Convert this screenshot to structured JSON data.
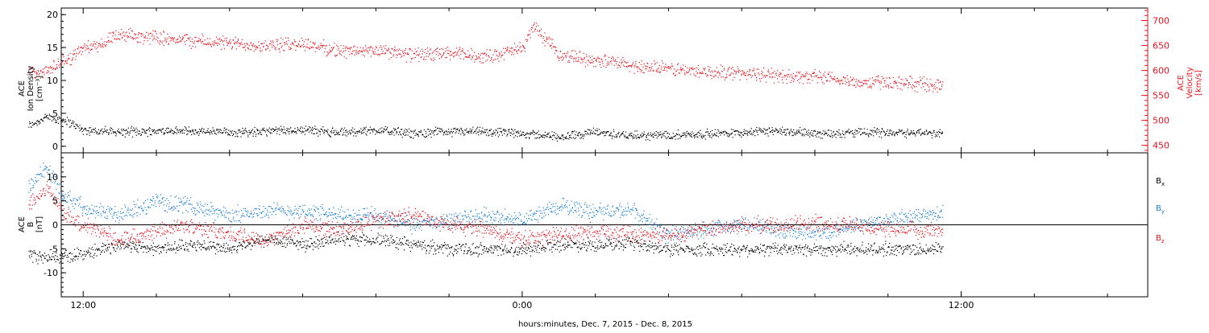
{
  "chart_data": [
    {
      "type": "scatter",
      "panel": "top",
      "left_axis": {
        "label_lines": [
          "ACE",
          "Ion Density"
        ],
        "unit": "[cm⁻³]",
        "ylim": [
          -1,
          21
        ],
        "ticks": [
          0,
          5,
          10,
          15,
          20
        ]
      },
      "right_axis": {
        "label_lines": [
          "ACE",
          "Velocity"
        ],
        "unit": "[km/s]",
        "ylim": [
          435,
          725
        ],
        "ticks": [
          450,
          500,
          550,
          600,
          650,
          700
        ],
        "color": "#e8141e"
      },
      "series": [
        {
          "color": "#000000",
          "axis": "left",
          "x_hours": [
            -1.5,
            -1,
            -0.5,
            0,
            1,
            2,
            3,
            4,
            5,
            6,
            7,
            8,
            9,
            10,
            11,
            12,
            13,
            14,
            15,
            16,
            17,
            18,
            19,
            20,
            21,
            22,
            23,
            23.5
          ],
          "values": [
            3.2,
            4.5,
            4.0,
            2.5,
            2.2,
            2.4,
            2.3,
            2.2,
            2.3,
            2.6,
            2.1,
            2.5,
            2.0,
            2.3,
            2.2,
            2.0,
            1.5,
            2.2,
            1.6,
            1.8,
            1.9,
            2.2,
            2.4,
            2.0,
            2.1,
            2.2,
            2.1,
            2.1
          ]
        },
        {
          "color": "#e8141e",
          "axis": "right",
          "x_hours": [
            -1.5,
            -1,
            -0.5,
            0,
            0.5,
            1,
            2,
            3,
            4,
            5,
            6,
            7,
            8,
            9,
            10,
            11,
            12,
            12.3,
            13,
            14,
            15,
            16,
            17,
            18,
            19,
            20,
            21,
            22,
            23,
            23.5
          ],
          "values": [
            595,
            600,
            620,
            645,
            655,
            670,
            668,
            660,
            655,
            650,
            655,
            640,
            640,
            632,
            635,
            628,
            645,
            690,
            632,
            622,
            610,
            604,
            598,
            596,
            590,
            588,
            578,
            577,
            574,
            570
          ]
        }
      ]
    },
    {
      "type": "scatter",
      "panel": "bottom",
      "left_axis": {
        "label_lines": [
          "ACE",
          "B"
        ],
        "unit": "[nT]",
        "ylim": [
          -15,
          15
        ],
        "ticks": [
          -10,
          -5,
          0,
          5,
          10
        ]
      },
      "legend": [
        {
          "label": "B",
          "sub": "x",
          "color": "#000000"
        },
        {
          "label": "B",
          "sub": "y",
          "color": "#1a7fd6"
        },
        {
          "label": "B",
          "sub": "z",
          "color": "#e8141e"
        }
      ],
      "series": [
        {
          "name": "Bx",
          "color": "#000000",
          "x_hours": [
            -1.5,
            -1,
            0,
            1,
            2,
            3,
            4,
            5,
            6,
            7,
            8,
            9,
            10,
            11,
            12,
            13,
            14,
            15,
            16,
            17,
            18,
            19,
            20,
            21,
            22,
            23,
            23.5
          ],
          "values": [
            -6,
            -7,
            -6,
            -4,
            -5,
            -4,
            -5,
            -3,
            -4,
            -3,
            -3,
            -4,
            -5,
            -5,
            -5,
            -4,
            -4,
            -4,
            -5,
            -5,
            -5,
            -5,
            -5,
            -5,
            -5,
            -5,
            -5
          ]
        },
        {
          "name": "By",
          "color": "#1a7fd6",
          "x_hours": [
            -1.5,
            -1,
            -0.5,
            0,
            1,
            2,
            3,
            4,
            5,
            6,
            7,
            8,
            9,
            10,
            11,
            12,
            13,
            14,
            15,
            16,
            17,
            18,
            19,
            20,
            21,
            22,
            23,
            23.5
          ],
          "values": [
            8,
            12,
            6,
            4,
            2,
            5,
            4,
            2,
            3,
            3,
            2,
            2,
            0,
            1,
            2,
            1,
            4,
            3,
            3,
            -2,
            -1,
            0,
            -1,
            -2,
            0,
            1,
            2,
            2.5
          ]
        },
        {
          "name": "Bz",
          "color": "#e8141e",
          "x_hours": [
            -1.5,
            -1,
            -0.5,
            0,
            1,
            2,
            3,
            4,
            5,
            6,
            7,
            8,
            9,
            10,
            11,
            12,
            13,
            14,
            15,
            16,
            17,
            18,
            19,
            20,
            21,
            22,
            23,
            23.5
          ],
          "values": [
            4,
            8,
            2,
            0,
            -3,
            -1,
            0,
            -2,
            -3,
            0,
            -1,
            1,
            2,
            0,
            -1,
            -3,
            -2,
            -1,
            -2,
            -2,
            -1,
            0,
            0,
            0.5,
            0,
            -1,
            -1,
            -1
          ]
        }
      ]
    }
  ],
  "x_axis": {
    "ticks": [
      {
        "hour": 0,
        "label": "12:00"
      },
      {
        "hour": 12,
        "label": "0:00"
      },
      {
        "hour": 24,
        "label": "12:00"
      }
    ],
    "minor_every_hours": 2,
    "xlim_hours": [
      -0.6,
      29.1
    ],
    "title": "hours:minutes, Dec.  7, 2015 - Dec.  8, 2015"
  }
}
